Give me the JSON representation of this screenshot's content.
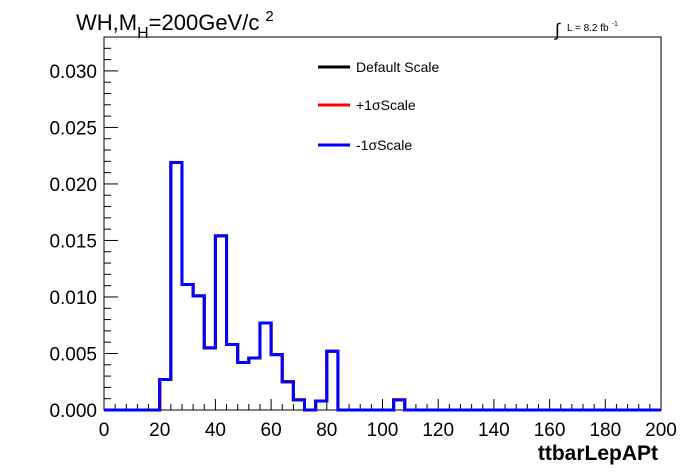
{
  "header": {
    "title_main": "WH,M",
    "title_sub": "H",
    "title_rest": "=200GeV/c",
    "title_sup": "2",
    "lumi_integral": "∫",
    "lumi_text": "L = 8.2 fb",
    "lumi_sup": "-1"
  },
  "chart_data": {
    "type": "line",
    "xlabel": "ttbarLepAPt",
    "ylabel": "",
    "xlim": [
      0,
      200
    ],
    "ylim": [
      0,
      0.033
    ],
    "grid": false,
    "legend_placement": "top-center",
    "x_ticks": [
      "0",
      "20",
      "40",
      "60",
      "80",
      "100",
      "120",
      "140",
      "160",
      "180",
      "200"
    ],
    "y_ticks": [
      "0.000",
      "0.005",
      "0.010",
      "0.015",
      "0.020",
      "0.025",
      "0.030"
    ],
    "bin_edges": [
      0,
      4,
      8,
      12,
      16,
      20,
      24,
      28,
      32,
      36,
      40,
      44,
      48,
      52,
      56,
      60,
      64,
      68,
      72,
      76,
      80,
      84,
      88,
      92,
      96,
      100,
      104,
      108,
      112,
      116,
      120,
      124,
      128,
      132,
      136,
      140,
      144,
      148,
      152,
      156,
      160,
      164,
      168,
      172,
      176,
      180,
      184,
      188,
      192,
      196,
      200
    ],
    "series": [
      {
        "name": "Default Scale",
        "color": "#000000",
        "values": [
          0,
          0,
          0,
          0,
          0,
          0.0027,
          0.0219,
          0.0111,
          0.0101,
          0.0055,
          0.0154,
          0.0058,
          0.0042,
          0.0046,
          0.0077,
          0.0049,
          0.0025,
          0.0009,
          0,
          0.0008,
          0.0052,
          0,
          0,
          0,
          0,
          0,
          0.0009,
          0,
          0,
          0,
          0,
          0,
          0,
          0,
          0,
          0,
          0,
          0,
          0,
          0,
          0,
          0,
          0,
          0,
          0,
          0,
          0,
          0,
          0,
          0
        ]
      },
      {
        "name": "+1σScale",
        "color": "#ff0000",
        "values": [
          0,
          0,
          0,
          0,
          0,
          0.0027,
          0.0219,
          0.0111,
          0.0101,
          0.0055,
          0.0154,
          0.0058,
          0.0042,
          0.0046,
          0.0077,
          0.0049,
          0.0025,
          0.0009,
          0,
          0.0008,
          0.0052,
          0,
          0,
          0,
          0,
          0,
          0.0009,
          0,
          0,
          0,
          0,
          0,
          0,
          0,
          0,
          0,
          0,
          0,
          0,
          0,
          0,
          0,
          0,
          0,
          0,
          0,
          0,
          0,
          0,
          0
        ]
      },
      {
        "name": "-1σScale",
        "color": "#0000ff",
        "values": [
          0,
          0,
          0,
          0,
          0,
          0.0027,
          0.0219,
          0.0111,
          0.0101,
          0.0055,
          0.0154,
          0.0058,
          0.0042,
          0.0046,
          0.0077,
          0.0049,
          0.0025,
          0.0009,
          0,
          0.0008,
          0.0052,
          0,
          0,
          0,
          0,
          0,
          0.0009,
          0,
          0,
          0,
          0,
          0,
          0,
          0,
          0,
          0,
          0,
          0,
          0,
          0,
          0,
          0,
          0,
          0,
          0,
          0,
          0,
          0,
          0,
          0
        ]
      }
    ]
  }
}
